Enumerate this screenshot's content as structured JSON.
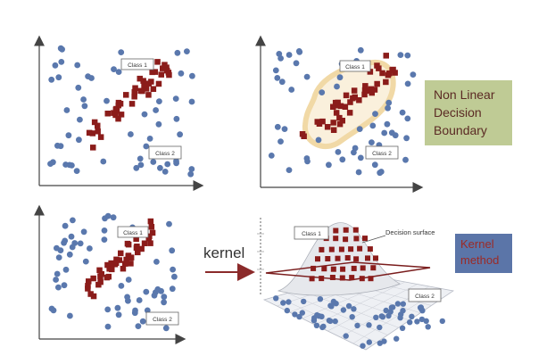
{
  "panels": {
    "top_left": {
      "class1": "Class 1",
      "class2": "Class 2"
    },
    "top_right": {
      "class1": "Class 1",
      "class2": "Class 2"
    },
    "bottom_left": {
      "class1": "Class 1",
      "class2": "Class 2"
    },
    "bottom_right": {
      "class1": "Class 1",
      "class2": "Class 2",
      "surface_label": "Decision surface"
    }
  },
  "callouts": {
    "nonlinear_lines": [
      "Non Linear",
      "Decision",
      "Boundary"
    ],
    "kernel_method_lines": [
      "Kernel",
      "method"
    ]
  },
  "arrow_label": "kernel",
  "colors": {
    "class1_square": "#8b1c1a",
    "class2_dot": "#5a78ad",
    "boundary_glow": "#f1d9a6",
    "green_box": "#bfcb95",
    "blue_box": "#5b75a8",
    "arrow": "#8b2a2a"
  }
}
